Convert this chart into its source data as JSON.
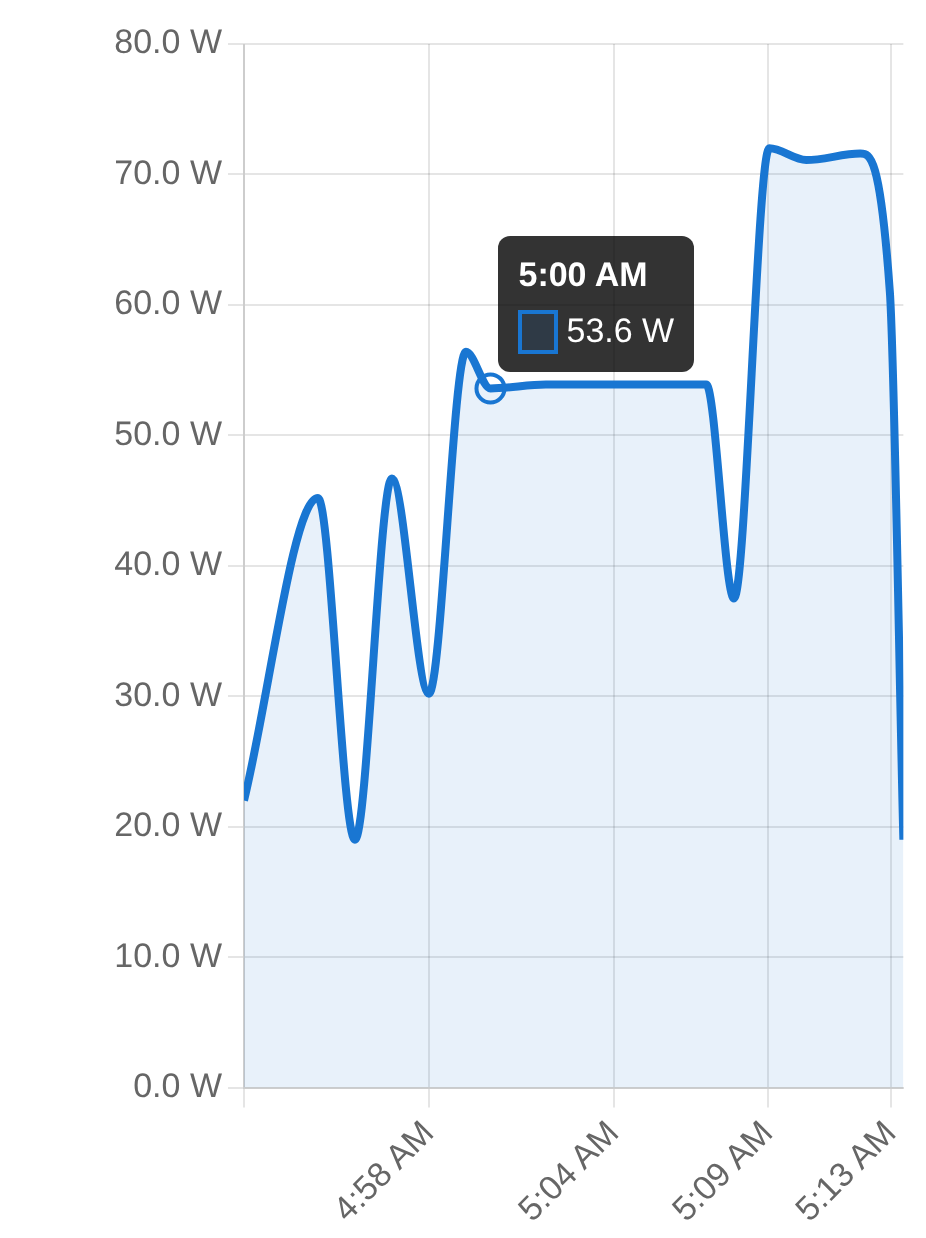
{
  "chart_data": {
    "type": "area",
    "x": [
      4.8667,
      4.9067,
      4.9267,
      4.9467,
      4.9667,
      4.9867,
      5.0,
      5.03,
      5.1167,
      5.1317,
      5.1508,
      5.1708,
      5.2,
      5.216,
      5.2233
    ],
    "series": [
      {
        "color": "#1976d2",
        "values": [
          22.0,
          45.2,
          19.0,
          46.7,
          30.2,
          56.4,
          53.6,
          53.9,
          53.9,
          37.5,
          72.0,
          71.1,
          71.6,
          61.0,
          19.0
        ]
      }
    ],
    "xlim": [
      4.8667,
      5.2233
    ],
    "xticks": [
      {
        "value": 4.8667,
        "label": null
      },
      {
        "value": 4.9667,
        "label": "4:58 AM"
      },
      {
        "value": 5.0667,
        "label": "5:04 AM"
      },
      {
        "value": 5.15,
        "label": "5:09 AM"
      },
      {
        "value": 5.2167,
        "label": "5:13 AM"
      }
    ],
    "ylim": [
      0,
      80
    ],
    "yticks": [
      {
        "value": 0,
        "label": "0.0 W"
      },
      {
        "value": 10,
        "label": "10.0 W"
      },
      {
        "value": 20,
        "label": "20.0 W"
      },
      {
        "value": 30,
        "label": "30.0 W"
      },
      {
        "value": 40,
        "label": "40.0 W"
      },
      {
        "value": 50,
        "label": "50.0 W"
      },
      {
        "value": 60,
        "label": "60.0 W"
      },
      {
        "value": 70,
        "label": "70.0 W"
      },
      {
        "value": 80,
        "label": "80.0 W"
      }
    ],
    "grid": true,
    "legend": false,
    "annotations": [
      {
        "text": "5:00 AM",
        "x": 5.0,
        "y": 53.6
      },
      {
        "text": "53.6 W",
        "x": 5.0,
        "y": 53.6
      }
    ]
  }
}
